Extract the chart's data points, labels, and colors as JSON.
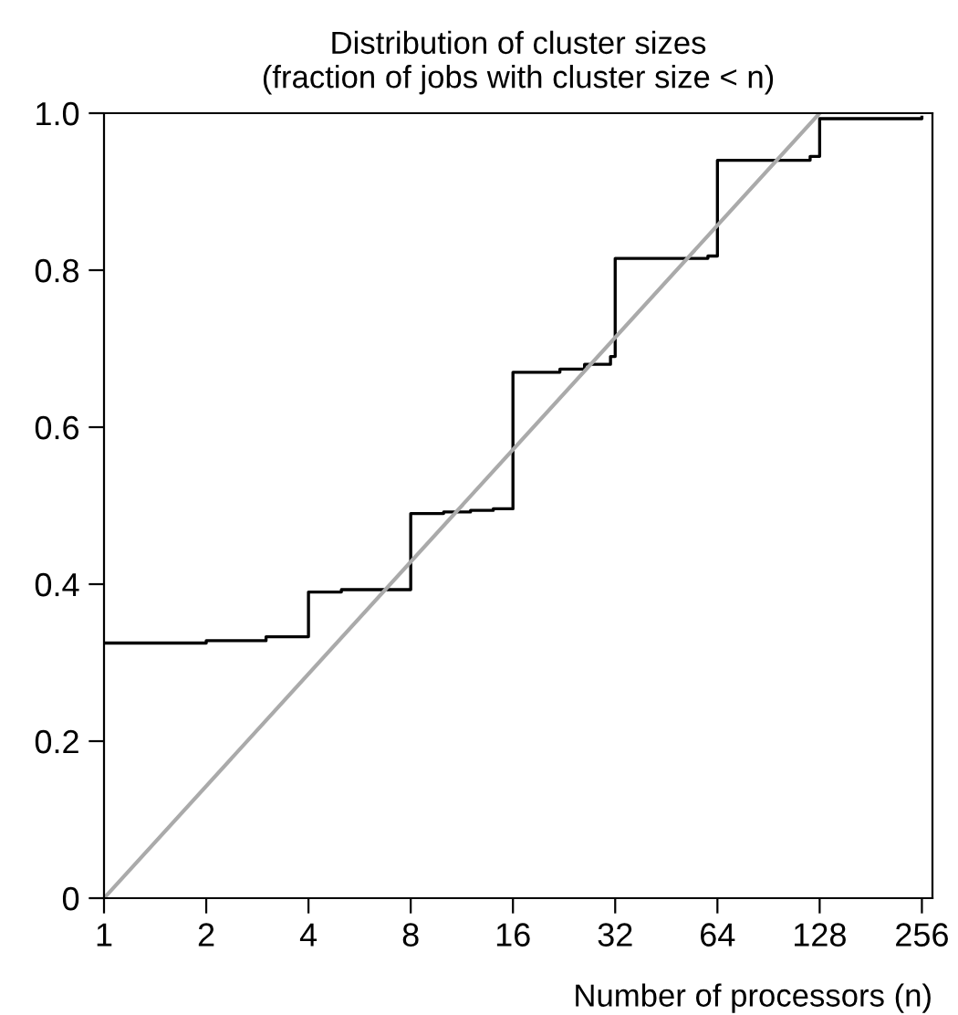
{
  "chart_data": {
    "type": "step",
    "title": "Distribution of cluster sizes\n(fraction of jobs with cluster size < n)",
    "xlabel": "Number of processors (n)",
    "series": [
      {
        "color": "#000000",
        "x": [
          1,
          2,
          3,
          4,
          5,
          8,
          10,
          12,
          14,
          16,
          22,
          26,
          31,
          32,
          60,
          64,
          120,
          128,
          256
        ],
        "values": [
          0.325,
          0.328,
          0.333,
          0.39,
          0.393,
          0.49,
          0.492,
          0.494,
          0.496,
          0.67,
          0.674,
          0.68,
          0.69,
          0.815,
          0.818,
          0.94,
          0.945,
          0.993,
          0.995
        ]
      },
      {
        "type": "line",
        "color": "#aaaaaa",
        "x": [
          1,
          128
        ],
        "values": [
          0,
          1
        ]
      }
    ],
    "log": "x",
    "xlim": [
      1,
      275
    ],
    "xticks": [
      1,
      2,
      4,
      8,
      16,
      32,
      64,
      128,
      256
    ],
    "ylim": [
      0,
      1
    ],
    "yticks": [
      0,
      0.2,
      0.4,
      0.6,
      0.8,
      {
        "value": 1,
        "label": "1.0"
      }
    ],
    "grid": false,
    "legend": false
  }
}
